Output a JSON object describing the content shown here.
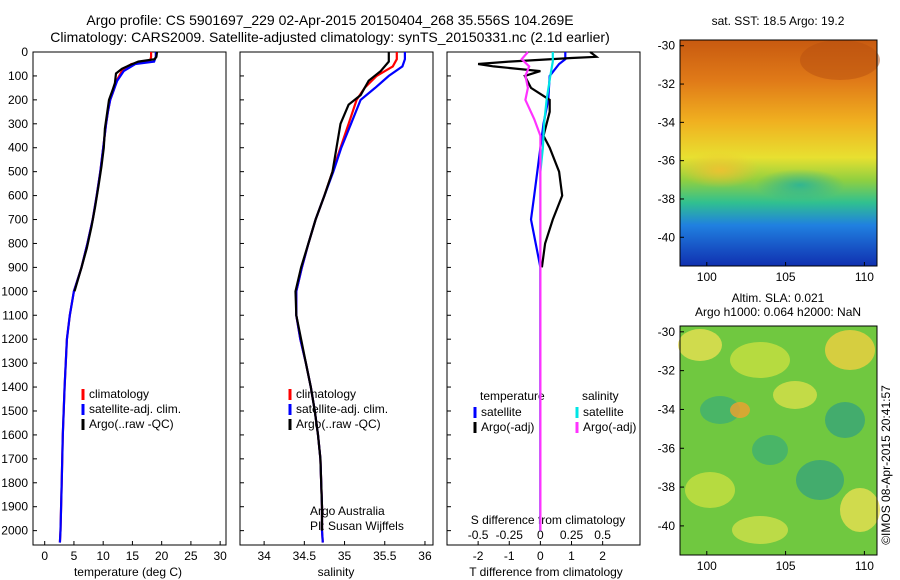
{
  "header": {
    "title_line1": "Argo profile: CS 5901697_229 02-Apr-2015 20150404_268 35.556S 104.269E",
    "title_line2": "Climatology: CARS2009. Satellite-adjusted climatology: synTS_20150331.nc (2.1d earlier)"
  },
  "colors": {
    "climatology": "#ff0000",
    "satellite": "#0000ff",
    "argo": "#000000",
    "satellite_salinity": "#00e5e5",
    "argo_salinity_diff": "#ff33ff"
  },
  "depth_ticks": [
    "0",
    "100",
    "200",
    "300",
    "400",
    "500",
    "600",
    "700",
    "800",
    "900",
    "1000",
    "1100",
    "1200",
    "1300",
    "1400",
    "1500",
    "1600",
    "1700",
    "1800",
    "1900",
    "2000"
  ],
  "legends": {
    "profile": [
      "climatology",
      "satellite-adj. clim.",
      "Argo(..raw -QC)"
    ],
    "diff_temperature_title": "temperature",
    "diff_salinity_title": "salinity",
    "diff_temperature_items": [
      "satellite",
      "Argo(-adj)"
    ],
    "diff_salinity_items": [
      "satellite",
      "Argo(-adj)"
    ]
  },
  "annotations": {
    "argo_line1": "Argo Australia",
    "argo_line2": "PI: Susan Wijffels",
    "sst_title": "sat. SST: 18.5  Argo: 19.2",
    "sla_title1": "Altim. SLA: 0.021",
    "sla_title2": "Argo h1000: 0.064 h2000: NaN",
    "credit": "©IMOS 08-Apr-2015 20:41:57"
  },
  "chart_data": [
    {
      "type": "line",
      "xlabel": "temperature (deg C)",
      "ylabel": "",
      "xlim": [
        -2,
        31
      ],
      "ylim": [
        2060,
        0
      ],
      "xticks": [
        "0",
        "5",
        "10",
        "15",
        "20",
        "25",
        "30"
      ],
      "series": [
        {
          "name": "climatology",
          "color": "#ff0000",
          "points": [
            [
              18.2,
              0
            ],
            [
              18.2,
              20
            ],
            [
              18.0,
              40
            ],
            [
              14.8,
              50
            ],
            [
              13.2,
              80
            ],
            [
              12.3,
              120
            ],
            [
              11.8,
              160
            ],
            [
              11.2,
              200
            ],
            [
              10.8,
              250
            ],
            [
              10.5,
              300
            ],
            [
              10.0,
              400
            ],
            [
              9.5,
              500
            ],
            [
              8.9,
              600
            ],
            [
              8.2,
              700
            ],
            [
              7.3,
              800
            ],
            [
              6.3,
              900
            ],
            [
              5.0,
              1000
            ],
            [
              4.3,
              1100
            ],
            [
              3.8,
              1200
            ],
            [
              3.4,
              1400
            ],
            [
              3.1,
              1600
            ],
            [
              2.9,
              1800
            ],
            [
              2.7,
              2000
            ],
            [
              2.6,
              2050
            ]
          ]
        },
        {
          "name": "satellite-adj. clim.",
          "color": "#0000ff",
          "points": [
            [
              19.0,
              0
            ],
            [
              19.0,
              20
            ],
            [
              18.7,
              40
            ],
            [
              15.5,
              50
            ],
            [
              13.5,
              80
            ],
            [
              12.4,
              120
            ],
            [
              11.8,
              160
            ],
            [
              11.2,
              200
            ],
            [
              10.8,
              250
            ],
            [
              10.5,
              300
            ],
            [
              10.0,
              400
            ],
            [
              9.5,
              500
            ],
            [
              8.9,
              600
            ],
            [
              8.2,
              700
            ],
            [
              7.3,
              800
            ],
            [
              6.3,
              900
            ],
            [
              5.0,
              1000
            ],
            [
              4.3,
              1100
            ],
            [
              3.8,
              1200
            ],
            [
              3.4,
              1400
            ],
            [
              3.1,
              1600
            ],
            [
              2.9,
              1800
            ],
            [
              2.7,
              2000
            ],
            [
              2.6,
              2050
            ]
          ]
        },
        {
          "name": "Argo(..raw -QC)",
          "color": "#000000",
          "points": [
            [
              19.2,
              0
            ],
            [
              19.1,
              20
            ],
            [
              18.8,
              30
            ],
            [
              16.0,
              40
            ],
            [
              14.5,
              55
            ],
            [
              13.2,
              70
            ],
            [
              12.2,
              90
            ],
            [
              12.0,
              130
            ],
            [
              11.6,
              160
            ],
            [
              11.0,
              200
            ],
            [
              10.7,
              250
            ],
            [
              10.3,
              320
            ],
            [
              10.1,
              400
            ],
            [
              9.7,
              480
            ],
            [
              9.2,
              560
            ],
            [
              8.6,
              650
            ],
            [
              8.0,
              730
            ],
            [
              7.2,
              820
            ],
            [
              6.3,
              900
            ],
            [
              5.1,
              1000
            ]
          ]
        }
      ]
    },
    {
      "type": "line",
      "xlabel": "salinity",
      "ylabel": "",
      "xlim": [
        33.7,
        36.1
      ],
      "ylim": [
        2060,
        0
      ],
      "xticks": [
        "34",
        "34.5",
        "35",
        "35.5",
        "36"
      ],
      "series": [
        {
          "name": "climatology",
          "color": "#ff0000",
          "points": [
            [
              35.65,
              0
            ],
            [
              35.65,
              30
            ],
            [
              35.6,
              60
            ],
            [
              35.4,
              100
            ],
            [
              35.25,
              150
            ],
            [
              35.15,
              200
            ],
            [
              35.05,
              300
            ],
            [
              34.95,
              400
            ],
            [
              34.85,
              500
            ],
            [
              34.75,
              600
            ],
            [
              34.64,
              700
            ],
            [
              34.55,
              800
            ],
            [
              34.47,
              900
            ],
            [
              34.4,
              1000
            ],
            [
              34.4,
              1100
            ],
            [
              34.45,
              1200
            ],
            [
              34.52,
              1300
            ],
            [
              34.58,
              1400
            ],
            [
              34.63,
              1500
            ],
            [
              34.67,
              1600
            ],
            [
              34.7,
              1700
            ],
            [
              34.71,
              1800
            ],
            [
              34.72,
              1900
            ],
            [
              34.72,
              2000
            ],
            [
              34.73,
              2050
            ]
          ]
        },
        {
          "name": "satellite-adj. clim.",
          "color": "#0000ff",
          "points": [
            [
              35.75,
              0
            ],
            [
              35.75,
              30
            ],
            [
              35.72,
              60
            ],
            [
              35.55,
              100
            ],
            [
              35.38,
              150
            ],
            [
              35.2,
              200
            ],
            [
              35.08,
              300
            ],
            [
              34.96,
              400
            ],
            [
              34.86,
              500
            ],
            [
              34.75,
              600
            ],
            [
              34.64,
              700
            ],
            [
              34.55,
              800
            ],
            [
              34.47,
              900
            ],
            [
              34.4,
              1000
            ],
            [
              34.4,
              1100
            ],
            [
              34.45,
              1200
            ],
            [
              34.52,
              1300
            ],
            [
              34.58,
              1400
            ],
            [
              34.63,
              1500
            ],
            [
              34.67,
              1600
            ],
            [
              34.7,
              1700
            ],
            [
              34.71,
              1800
            ],
            [
              34.72,
              1900
            ],
            [
              34.72,
              2000
            ],
            [
              34.73,
              2050
            ]
          ]
        },
        {
          "name": "Argo(..raw -QC)",
          "color": "#000000",
          "points": [
            [
              35.55,
              0
            ],
            [
              35.55,
              40
            ],
            [
              35.45,
              80
            ],
            [
              35.3,
              120
            ],
            [
              35.2,
              180
            ],
            [
              35.05,
              220
            ],
            [
              34.95,
              300
            ],
            [
              34.9,
              400
            ],
            [
              34.85,
              500
            ],
            [
              34.75,
              600
            ],
            [
              34.64,
              700
            ],
            [
              34.55,
              800
            ],
            [
              34.46,
              900
            ],
            [
              34.39,
              1000
            ],
            [
              34.4,
              1100
            ],
            [
              34.46,
              1200
            ],
            [
              34.52,
              1300
            ],
            [
              34.58,
              1400
            ],
            [
              34.63,
              1500
            ],
            [
              34.67,
              1600
            ],
            [
              34.7,
              1700
            ],
            [
              34.71,
              1800
            ],
            [
              34.72,
              1900
            ],
            [
              34.72,
              2000
            ]
          ]
        }
      ]
    },
    {
      "type": "line",
      "xlabel": "T difference from climatology",
      "x2label": "S difference from climatology",
      "ylabel": "",
      "xlim": [
        -3,
        3.2
      ],
      "ylim": [
        2060,
        0
      ],
      "xticks": [
        "-2",
        "-1",
        "0",
        "1",
        "2"
      ],
      "x2ticks": [
        "-0.5",
        "-0.25",
        "0",
        "0.25",
        "0.5"
      ],
      "series": [
        {
          "name": "temperature satellite",
          "color": "#0000ff",
          "points": [
            [
              0.8,
              0
            ],
            [
              0.8,
              30
            ],
            [
              0.6,
              50
            ],
            [
              0.3,
              100
            ],
            [
              0.25,
              200
            ],
            [
              0.1,
              300
            ],
            [
              0.0,
              400
            ],
            [
              -0.1,
              500
            ],
            [
              -0.2,
              600
            ],
            [
              -0.3,
              700
            ],
            [
              -0.15,
              800
            ],
            [
              0.0,
              900
            ],
            [
              0.0,
              1000
            ],
            [
              0.0,
              2000
            ]
          ]
        },
        {
          "name": "temperature Argo(-adj)",
          "color": "#000000",
          "points": [
            [
              1.6,
              0
            ],
            [
              1.8,
              20
            ],
            [
              1.0,
              25
            ],
            [
              -1.0,
              40
            ],
            [
              -2.0,
              50
            ],
            [
              -1.5,
              60
            ],
            [
              0.0,
              80
            ],
            [
              -0.5,
              100
            ],
            [
              -0.3,
              150
            ],
            [
              0.3,
              200
            ],
            [
              0.3,
              250
            ],
            [
              0.2,
              300
            ],
            [
              0.1,
              350
            ],
            [
              0.3,
              400
            ],
            [
              0.6,
              500
            ],
            [
              0.7,
              600
            ],
            [
              0.4,
              700
            ],
            [
              0.15,
              800
            ],
            [
              0.05,
              900
            ]
          ]
        },
        {
          "name": "salinity satellite",
          "color": "#00e5e5",
          "points": [
            [
              0.1,
              0
            ],
            [
              0.1,
              40
            ],
            [
              0.08,
              100
            ],
            [
              0.05,
              200
            ],
            [
              0.03,
              300
            ],
            [
              0.02,
              400
            ],
            [
              0.0,
              500
            ],
            [
              0.0,
              1000
            ],
            [
              0.0,
              2000
            ]
          ]
        },
        {
          "name": "salinity Argo(-adj)",
          "color": "#ff33ff",
          "points": [
            [
              -0.1,
              0
            ],
            [
              -0.15,
              30
            ],
            [
              -0.09,
              60
            ],
            [
              -0.12,
              100
            ],
            [
              -0.1,
              150
            ],
            [
              -0.12,
              200
            ],
            [
              -0.05,
              280
            ],
            [
              0.0,
              350
            ],
            [
              0.0,
              400
            ],
            [
              0.0,
              500
            ],
            [
              0.0,
              1000
            ],
            [
              0.0,
              1500
            ],
            [
              0.0,
              2000
            ]
          ]
        }
      ]
    },
    {
      "type": "heatmap",
      "title": "sat. SST: 18.5  Argo: 19.2",
      "xlim": [
        98.3,
        110.8
      ],
      "ylim": [
        -41.5,
        -29.7
      ],
      "xticks": [
        "100",
        "105",
        "110"
      ],
      "yticks": [
        "-30",
        "-32",
        "-34",
        "-36",
        "-38",
        "-40"
      ]
    },
    {
      "type": "heatmap",
      "title": "Altim. SLA: 0.021",
      "subtitle": "Argo h1000: 0.064 h2000: NaN",
      "xlim": [
        98.3,
        110.8
      ],
      "ylim": [
        -41.5,
        -29.7
      ],
      "xticks": [
        "100",
        "105",
        "110"
      ],
      "yticks": [
        "-30",
        "-32",
        "-34",
        "-36",
        "-38",
        "-40"
      ]
    }
  ]
}
